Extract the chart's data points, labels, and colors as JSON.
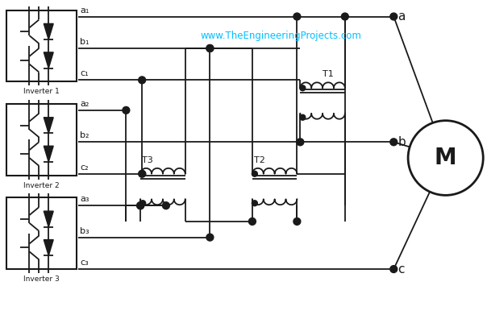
{
  "title": "www.TheEngineeringProjects.com",
  "title_color": "#00BFFF",
  "bg_color": "#ffffff",
  "line_color": "#1a1a1a",
  "figsize": [
    6.04,
    3.96
  ],
  "dpi": 100,
  "inverter_labels": [
    "Inverter 1",
    "Inverter 2",
    "Inverter 3"
  ],
  "motor_label": "M",
  "transformer_labels": [
    "T1",
    "T2",
    "T3"
  ]
}
